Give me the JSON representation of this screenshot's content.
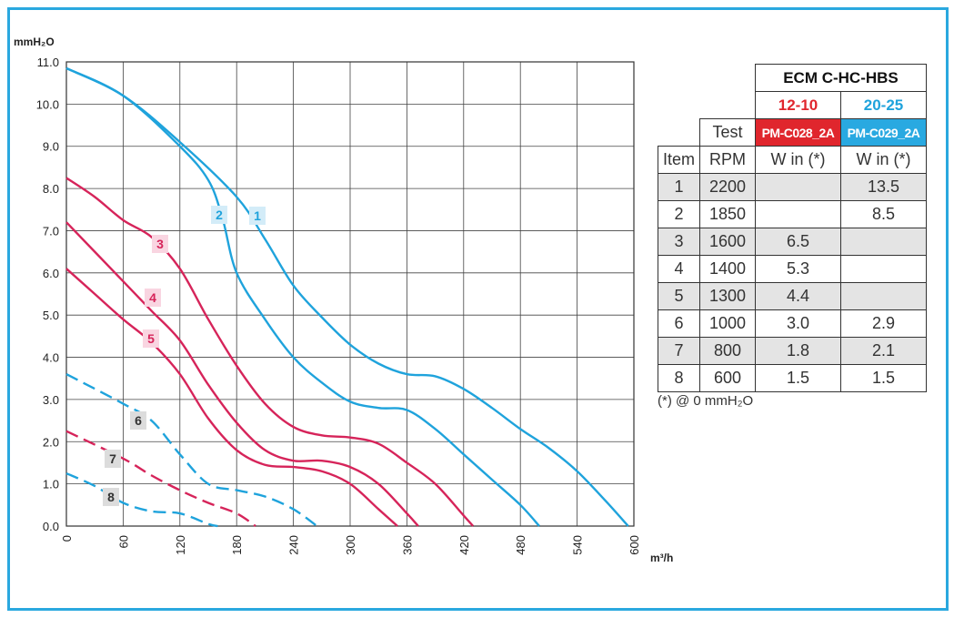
{
  "chart_data": {
    "type": "line",
    "ylabel": "mmH₂O",
    "xlabel": "m³/h",
    "xlim": [
      0,
      600
    ],
    "xticks": [
      0,
      60,
      120,
      180,
      240,
      300,
      360,
      420,
      480,
      540,
      600
    ],
    "ylim": [
      0,
      11
    ],
    "yticks": [
      {
        "value": 0,
        "label": "0.0"
      },
      {
        "value": 1,
        "label": "1.0"
      },
      {
        "value": 2,
        "label": "2.0"
      },
      {
        "value": 3,
        "label": "3.0"
      },
      {
        "value": 4,
        "label": "4.0"
      },
      {
        "value": 5,
        "label": "5.0"
      },
      {
        "value": 6,
        "label": "6.0"
      },
      {
        "value": 7,
        "label": "7.0"
      },
      {
        "value": 8,
        "label": "8.0"
      },
      {
        "value": 9,
        "label": "9.0"
      },
      {
        "value": 10,
        "label": "10.0"
      },
      {
        "value": 11,
        "label": "11.0"
      }
    ],
    "grid": true,
    "series": [
      {
        "name": "1",
        "color": "#1fa3dc",
        "dashed": false,
        "x": [
          0,
          60,
          120,
          180,
          210,
          240,
          270,
          300,
          330,
          360,
          390,
          420,
          450,
          480,
          510,
          540,
          570,
          594
        ],
        "values": [
          10.85,
          10.2,
          9.1,
          7.8,
          6.8,
          5.7,
          4.95,
          4.3,
          3.85,
          3.6,
          3.55,
          3.25,
          2.8,
          2.3,
          1.85,
          1.3,
          0.6,
          0
        ]
      },
      {
        "name": "2",
        "color": "#1fa3dc",
        "dashed": false,
        "x": [
          0,
          60,
          120,
          150,
          165,
          180,
          210,
          240,
          270,
          300,
          330,
          360,
          390,
          420,
          450,
          480,
          500
        ],
        "values": [
          10.85,
          10.2,
          9.0,
          8.2,
          7.3,
          6.0,
          4.9,
          4.0,
          3.4,
          2.95,
          2.8,
          2.75,
          2.3,
          1.7,
          1.1,
          0.5,
          0
        ]
      },
      {
        "name": "3",
        "color": "#d6245a",
        "dashed": false,
        "x": [
          0,
          30,
          60,
          90,
          120,
          150,
          180,
          210,
          240,
          270,
          300,
          330,
          360,
          390,
          420,
          430
        ],
        "values": [
          8.25,
          7.8,
          7.25,
          6.85,
          6.1,
          4.9,
          3.8,
          2.9,
          2.35,
          2.15,
          2.1,
          1.95,
          1.5,
          1.0,
          0.25,
          0
        ]
      },
      {
        "name": "4",
        "color": "#d6245a",
        "dashed": false,
        "x": [
          0,
          30,
          60,
          90,
          120,
          150,
          180,
          210,
          240,
          270,
          300,
          330,
          360,
          372
        ],
        "values": [
          7.2,
          6.5,
          5.8,
          5.1,
          4.4,
          3.35,
          2.45,
          1.8,
          1.55,
          1.55,
          1.4,
          1.0,
          0.3,
          0
        ]
      },
      {
        "name": "5",
        "color": "#d6245a",
        "dashed": false,
        "x": [
          0,
          30,
          60,
          90,
          120,
          150,
          180,
          210,
          240,
          270,
          300,
          330,
          350
        ],
        "values": [
          6.1,
          5.5,
          4.9,
          4.35,
          3.6,
          2.55,
          1.8,
          1.45,
          1.4,
          1.3,
          1.0,
          0.4,
          0
        ]
      },
      {
        "name": "6",
        "color": "#1fa3dc",
        "dashed": true,
        "x": [
          0,
          60,
          90,
          120,
          150,
          180,
          210,
          240,
          265
        ],
        "values": [
          3.6,
          2.9,
          2.5,
          1.7,
          1.0,
          0.85,
          0.7,
          0.4,
          0
        ]
      },
      {
        "name": "7",
        "color": "#d6245a",
        "dashed": true,
        "x": [
          0,
          60,
          90,
          120,
          150,
          180,
          200
        ],
        "values": [
          2.25,
          1.6,
          1.2,
          0.85,
          0.55,
          0.3,
          0
        ]
      },
      {
        "name": "8",
        "color": "#1fa3dc",
        "dashed": true,
        "x": [
          0,
          30,
          60,
          90,
          120,
          150,
          160
        ],
        "values": [
          1.25,
          0.95,
          0.55,
          0.35,
          0.3,
          0.05,
          0
        ]
      }
    ]
  },
  "table": {
    "model": "ECM C-HC-HBS",
    "sizes": [
      "12-10",
      "20-25"
    ],
    "test": "Test",
    "codes": [
      "PM-C028_2A",
      "PM-C029_2A"
    ],
    "columns": [
      "Item",
      "RPM",
      "W in (*)",
      "W in (*)"
    ],
    "rows": [
      [
        "1",
        "2200",
        null,
        "13.5"
      ],
      [
        "2",
        "1850",
        null,
        "8.5"
      ],
      [
        "3",
        "1600",
        "6.5",
        null
      ],
      [
        "4",
        "1400",
        "5.3",
        null
      ],
      [
        "5",
        "1300",
        "4.4",
        null
      ],
      [
        "6",
        "1000",
        "3.0",
        "2.9"
      ],
      [
        "7",
        "800",
        "1.8",
        "2.1"
      ],
      [
        "8",
        "600",
        "1.5",
        "1.5"
      ]
    ],
    "note": "(*) @ 0 mmH₂O"
  }
}
